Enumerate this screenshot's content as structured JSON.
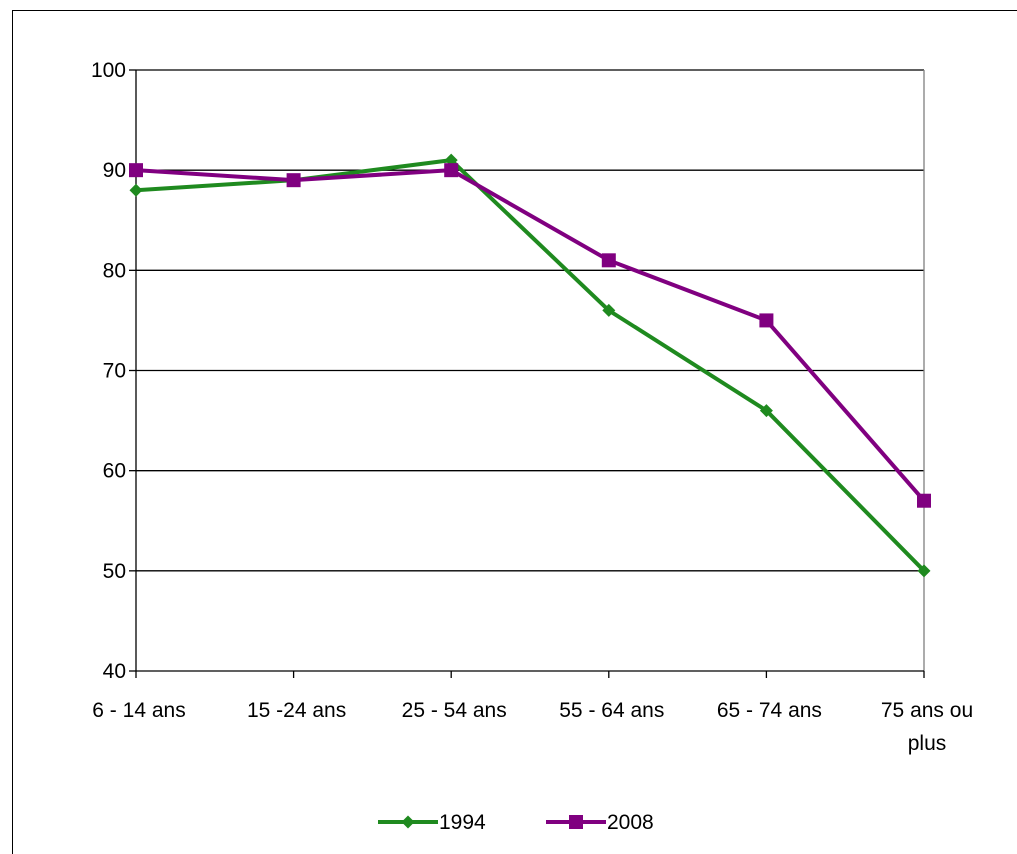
{
  "chart_data": {
    "type": "line",
    "categories": [
      [
        "6 - 14 ans"
      ],
      [
        "15 -24 ans"
      ],
      [
        "25 - 54 ans"
      ],
      [
        "55 - 64 ans"
      ],
      [
        "65 - 74 ans"
      ],
      [
        "75 ans ou",
        "plus"
      ]
    ],
    "series": [
      {
        "name": "1994",
        "values": [
          88,
          89,
          91,
          76,
          66,
          50
        ],
        "color": "#1f8a1f",
        "marker": "diamond"
      },
      {
        "name": "2008",
        "values": [
          90,
          89,
          90,
          81,
          75,
          57
        ],
        "color": "#800080",
        "marker": "square"
      }
    ],
    "ylim": [
      40,
      100
    ],
    "yticks": [
      40,
      50,
      60,
      70,
      80,
      90,
      100
    ],
    "grid": true,
    "legend_position": "bottom"
  }
}
